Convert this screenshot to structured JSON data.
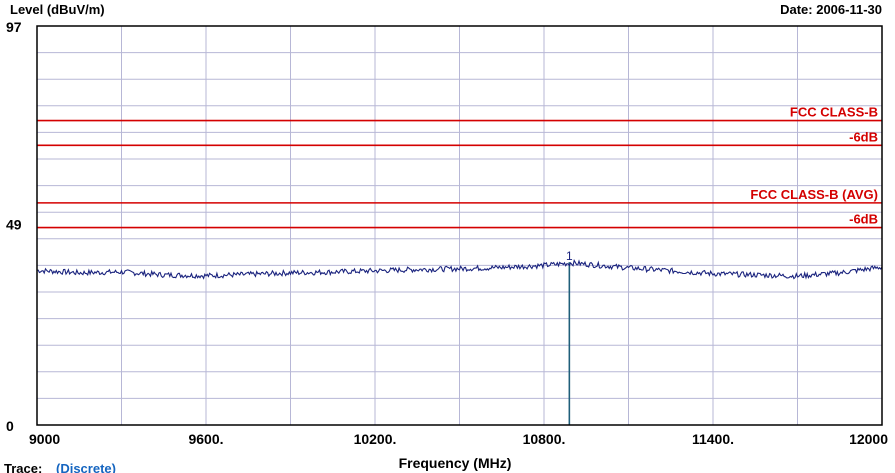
{
  "header": {
    "ylabel": "Level (dBuV/m)",
    "date": "Date: 2006-11-30"
  },
  "chart_data": {
    "type": "line",
    "xlabel": "Frequency (MHz)",
    "ylabel": "Level (dBuV/m)",
    "xlim": [
      9000,
      12000
    ],
    "ylim": [
      0,
      97
    ],
    "x_tick_values": [
      9000,
      9600,
      10200,
      10800,
      11400,
      12000
    ],
    "x_tick_labels": [
      "9000",
      "9600.",
      "10200.",
      "10800.",
      "11400.",
      "12000"
    ],
    "y_tick_labels": [
      {
        "value": 97,
        "label": "97"
      },
      {
        "value": 49,
        "label": "49"
      },
      {
        "value": 0,
        "label": "0"
      }
    ],
    "grid": true,
    "grid_lines": {
      "x_divisions": 10,
      "y_divisions": 15
    },
    "limit_lines": [
      {
        "name": "FCC CLASS-B",
        "value": 74,
        "color": "#d40000"
      },
      {
        "name": "-6dB",
        "value": 68,
        "color": "#d40000"
      },
      {
        "name": "FCC CLASS-B (AVG)",
        "value": 54,
        "color": "#d40000"
      },
      {
        "name": "-6dB",
        "value": 48,
        "color": "#d40000"
      }
    ],
    "series": [
      {
        "color": "#1a237e",
        "x": [
          9000,
          9150,
          9300,
          9450,
          9600,
          9750,
          9900,
          10050,
          10200,
          10350,
          10500,
          10650,
          10800,
          10900,
          10950,
          11100,
          11250,
          11400,
          11550,
          11700,
          11850,
          12000
        ],
        "y": [
          37.6,
          37.0,
          37.2,
          36.5,
          36.3,
          36.6,
          37.0,
          37.2,
          37.5,
          37.8,
          38.0,
          38.3,
          38.8,
          39.4,
          39.1,
          38.2,
          37.5,
          36.8,
          36.5,
          36.2,
          37.0,
          38.4
        ]
      }
    ],
    "markers": [
      {
        "label": "1",
        "x": 10890,
        "y": 39.6
      }
    ]
  },
  "footer": {
    "trace_label": "Trace:",
    "trace_value": "(Discrete)"
  },
  "colors": {
    "grid": "#b7b7d6",
    "limit": "#d40000",
    "trace": "#1a237e",
    "marker": "#1f5f7a",
    "link": "#1565c0"
  }
}
